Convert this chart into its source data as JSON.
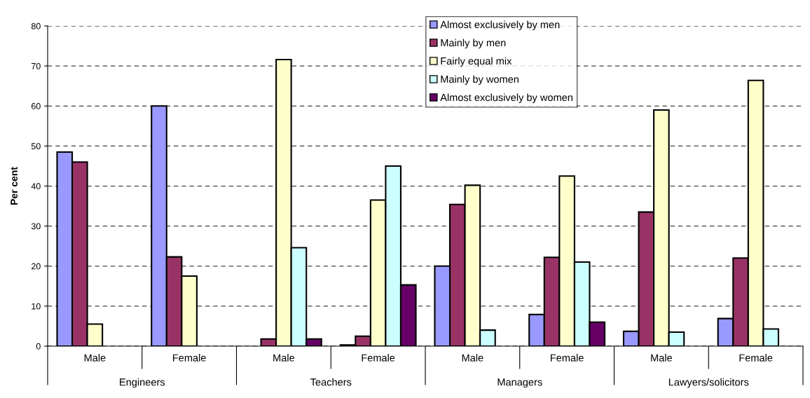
{
  "chart_data": {
    "type": "bar",
    "ylabel": "Per cent",
    "categories": [
      "Male",
      "Female",
      "Male",
      "Female",
      "Male",
      "Female",
      "Male",
      "Female"
    ],
    "annotations": [
      "Engineers",
      "Teachers",
      "Managers",
      "Lawyers/solicitors"
    ],
    "series": [
      {
        "name": "Almost exclusively by men",
        "color": "#9999ff",
        "values": [
          48.5,
          60,
          null,
          0.3,
          20,
          7.9,
          3.7,
          6.9
        ]
      },
      {
        "name": "Mainly by men",
        "color": "#993366",
        "values": [
          46,
          22.3,
          1.8,
          2.5,
          35.4,
          22.2,
          33.5,
          22
        ]
      },
      {
        "name": "Fairly equal mix",
        "color": "#ffffcc",
        "values": [
          5.5,
          17.5,
          71.6,
          36.5,
          40.2,
          42.5,
          59,
          66.4
        ]
      },
      {
        "name": "Mainly by women",
        "color": "#ccffff",
        "values": [
          null,
          null,
          24.6,
          45,
          4,
          21,
          3.5,
          4.3
        ]
      },
      {
        "name": "Almost exclusively by women",
        "color": "#660066",
        "values": [
          null,
          null,
          1.8,
          15.3,
          null,
          6,
          null,
          null
        ]
      }
    ],
    "ylim": [
      0,
      80
    ],
    "yticks": [
      0,
      10,
      20,
      30,
      40,
      50,
      60,
      70,
      80
    ],
    "grid": "y",
    "legend": "top right"
  }
}
